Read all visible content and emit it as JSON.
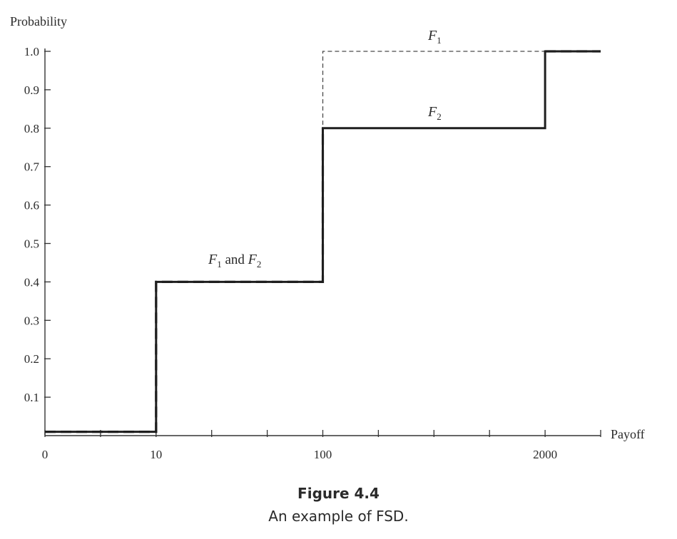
{
  "chart_data": {
    "type": "line",
    "subtype": "step",
    "ylabel": "Probability",
    "xlabel": "Payoff",
    "y_ticks": [
      0.1,
      0.2,
      0.3,
      0.4,
      0.5,
      0.6,
      0.7,
      0.8,
      0.9,
      1.0
    ],
    "y_tick_labels": [
      "0.1",
      "0.2",
      "0.3",
      "0.4",
      "0.5",
      "0.6",
      "0.7",
      "0.8",
      "0.9",
      "1.0"
    ],
    "ylim": [
      0,
      1.0
    ],
    "x_scale": "ordinal-positions",
    "x_tick_positions": [
      0,
      1,
      2,
      3,
      4,
      5,
      6,
      7,
      8,
      9,
      10
    ],
    "x_labeled_ticks": [
      {
        "pos": 0,
        "label": "0"
      },
      {
        "pos": 2,
        "label": "10"
      },
      {
        "pos": 5,
        "label": "100"
      },
      {
        "pos": 9,
        "label": "2000"
      }
    ],
    "x_payoffs": [
      0,
      10,
      100,
      2000
    ],
    "xlim_positions": [
      0,
      10
    ],
    "series": [
      {
        "name": "F1",
        "style": "dashed-thin",
        "points": [
          [
            0,
            0.01
          ],
          [
            2,
            0.01
          ],
          [
            2,
            0.4
          ],
          [
            5,
            0.4
          ],
          [
            5,
            1.0
          ],
          [
            10,
            1.0
          ]
        ]
      },
      {
        "name": "F2",
        "style": "solid",
        "points": [
          [
            0,
            0.01
          ],
          [
            2,
            0.01
          ],
          [
            2,
            0.4
          ],
          [
            5,
            0.4
          ],
          [
            5,
            0.8
          ],
          [
            9,
            0.8
          ],
          [
            9,
            1.0
          ],
          [
            10,
            1.0
          ]
        ]
      },
      {
        "name": "F1 and F2",
        "style": "dashed-thick",
        "points": [
          [
            0,
            0.01
          ],
          [
            2,
            0.01
          ],
          [
            2,
            0.4
          ],
          [
            5,
            0.4
          ],
          [
            5,
            0.8
          ]
        ]
      },
      {
        "name": "F1 and F2 (top)",
        "style": "dashed-thick",
        "points": [
          [
            9,
            1.0
          ],
          [
            10,
            1.0
          ]
        ]
      }
    ],
    "annotations": {
      "f1": {
        "main": "F",
        "sub": "1"
      },
      "f2": {
        "main": "F",
        "sub": "2"
      },
      "f1f2": {
        "main1": "F",
        "sub1": "1",
        "and": " and ",
        "main2": "F",
        "sub2": "2"
      }
    },
    "grid": false,
    "legend": "none"
  },
  "caption": {
    "figure_number": "Figure 4.4",
    "text": "An example of FSD."
  }
}
